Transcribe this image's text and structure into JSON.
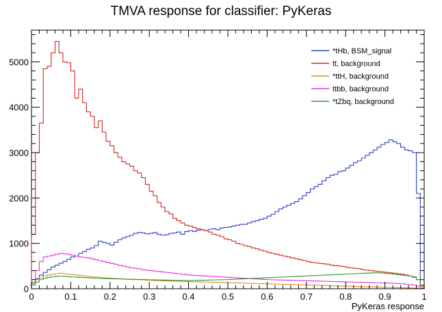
{
  "chart_data": {
    "type": "line",
    "title": "TMVA response for classifier: PyKeras",
    "xlabel": "PyKeras response",
    "ylabel": "",
    "xlim": [
      0,
      1
    ],
    "ylim": [
      0,
      5700
    ],
    "x_ticks": [
      0,
      0.1,
      0.2,
      0.3,
      0.4,
      0.5,
      0.6,
      0.7,
      0.8,
      0.9,
      1
    ],
    "x_tick_labels": [
      "0",
      "0.1",
      "0.2",
      "0.3",
      "0.4",
      "0.5",
      "0.6",
      "0.7",
      "0.8",
      "0.9",
      "1"
    ],
    "y_ticks": [
      0,
      1000,
      2000,
      3000,
      4000,
      5000
    ],
    "y_tick_labels": [
      "0",
      "1000",
      "2000",
      "3000",
      "4000",
      "5000"
    ],
    "legend_position": "top-right",
    "step": true,
    "bin_edges": [
      0,
      0.01,
      0.02,
      0.03,
      0.04,
      0.05,
      0.06,
      0.07,
      0.08,
      0.09,
      0.1,
      0.11,
      0.12,
      0.13,
      0.14,
      0.15,
      0.16,
      0.17,
      0.18,
      0.19,
      0.2,
      0.21,
      0.22,
      0.23,
      0.24,
      0.25,
      0.26,
      0.27,
      0.28,
      0.29,
      0.3,
      0.31,
      0.32,
      0.33,
      0.34,
      0.35,
      0.36,
      0.37,
      0.38,
      0.39,
      0.4,
      0.41,
      0.42,
      0.43,
      0.44,
      0.45,
      0.46,
      0.47,
      0.48,
      0.49,
      0.5,
      0.51,
      0.52,
      0.53,
      0.54,
      0.55,
      0.56,
      0.57,
      0.58,
      0.59,
      0.6,
      0.61,
      0.62,
      0.63,
      0.64,
      0.65,
      0.66,
      0.67,
      0.68,
      0.69,
      0.7,
      0.71,
      0.72,
      0.73,
      0.74,
      0.75,
      0.76,
      0.77,
      0.78,
      0.79,
      0.8,
      0.81,
      0.82,
      0.83,
      0.84,
      0.85,
      0.86,
      0.87,
      0.88,
      0.89,
      0.9,
      0.91,
      0.92,
      0.93,
      0.94,
      0.95,
      0.96,
      0.97,
      0.98,
      0.99,
      1.0
    ],
    "series": [
      {
        "name": "*tHb, BSM_signal",
        "color": "#2b3dc7",
        "values": [
          120,
          220,
          300,
          360,
          420,
          480,
          520,
          560,
          600,
          650,
          700,
          720,
          780,
          820,
          870,
          900,
          950,
          1050,
          1020,
          1000,
          960,
          1020,
          1080,
          1120,
          1150,
          1180,
          1220,
          1240,
          1230,
          1210,
          1220,
          1240,
          1200,
          1180,
          1190,
          1220,
          1230,
          1250,
          1200,
          1260,
          1280,
          1260,
          1290,
          1300,
          1280,
          1310,
          1320,
          1300,
          1340,
          1350,
          1360,
          1380,
          1400,
          1420,
          1420,
          1450,
          1480,
          1500,
          1530,
          1550,
          1600,
          1640,
          1700,
          1760,
          1800,
          1840,
          1880,
          1920,
          1980,
          2050,
          2120,
          2200,
          2250,
          2300,
          2380,
          2450,
          2500,
          2520,
          2580,
          2600,
          2660,
          2720,
          2780,
          2820,
          2880,
          2940,
          3000,
          3060,
          3120,
          3180,
          3220,
          3280,
          3240,
          3200,
          3120,
          3060,
          3040,
          3000,
          2100,
          80
        ]
      },
      {
        "name": "tt, background",
        "color": "#d3241c",
        "values": [
          1200,
          3000,
          3650,
          4850,
          4900,
          5200,
          5450,
          5200,
          5000,
          4980,
          4800,
          4200,
          4400,
          4100,
          3900,
          3800,
          3550,
          3700,
          3450,
          3250,
          3150,
          3000,
          2900,
          2800,
          2750,
          2700,
          2600,
          2550,
          2450,
          2300,
          2150,
          2050,
          1900,
          1800,
          1700,
          1650,
          1550,
          1500,
          1450,
          1400,
          1380,
          1350,
          1320,
          1300,
          1280,
          1250,
          1200,
          1180,
          1150,
          1100,
          1080,
          1050,
          1000,
          980,
          950,
          930,
          900,
          880,
          850,
          830,
          800,
          780,
          760,
          740,
          720,
          700,
          680,
          660,
          640,
          620,
          600,
          580,
          570,
          560,
          550,
          540,
          520,
          510,
          500,
          490,
          470,
          460,
          450,
          440,
          420,
          410,
          400,
          390,
          380,
          370,
          360,
          350,
          340,
          330,
          320,
          300,
          280,
          250,
          200,
          80
        ]
      },
      {
        "name": "*ttH, background",
        "color": "#d98a2b",
        "values": [
          150,
          200,
          240,
          280,
          300,
          320,
          330,
          340,
          330,
          320,
          310,
          300,
          290,
          280,
          270,
          260,
          255,
          250,
          240,
          235,
          230,
          225,
          220,
          215,
          210,
          205,
          200,
          200,
          195,
          190,
          185,
          180,
          178,
          175,
          172,
          170,
          168,
          165,
          162,
          160,
          158,
          155,
          152,
          150,
          148,
          145,
          142,
          140,
          138,
          135,
          132,
          130,
          128,
          125,
          122,
          120,
          118,
          115,
          112,
          110,
          108,
          105,
          102,
          100,
          98,
          95,
          92,
          90,
          88,
          85,
          82,
          80,
          78,
          75,
          72,
          70,
          68,
          65,
          62,
          60,
          58,
          55,
          52,
          50,
          48,
          45,
          42,
          40,
          38,
          35,
          32,
          30,
          28,
          25,
          22,
          20,
          18,
          15,
          12,
          8
        ]
      },
      {
        "name": "ttbb, background",
        "color": "#e030d8",
        "values": [
          200,
          400,
          600,
          700,
          720,
          740,
          760,
          780,
          770,
          760,
          740,
          720,
          700,
          690,
          680,
          660,
          640,
          620,
          600,
          580,
          560,
          540,
          520,
          500,
          480,
          460,
          450,
          440,
          420,
          410,
          400,
          390,
          380,
          370,
          360,
          350,
          340,
          330,
          320,
          310,
          300,
          295,
          290,
          285,
          280,
          275,
          270,
          265,
          260,
          255,
          250,
          245,
          240,
          235,
          230,
          225,
          220,
          215,
          210,
          205,
          200,
          198,
          195,
          192,
          190,
          188,
          185,
          182,
          180,
          178,
          175,
          172,
          170,
          168,
          165,
          162,
          160,
          158,
          155,
          152,
          150,
          148,
          145,
          142,
          140,
          138,
          135,
          132,
          130,
          128,
          125,
          122,
          120,
          115,
          110,
          100,
          90,
          80,
          60,
          20
        ]
      },
      {
        "name": "*tZbq, background",
        "color": "#2e9a32",
        "values": [
          80,
          150,
          200,
          230,
          250,
          260,
          270,
          275,
          270,
          265,
          260,
          255,
          250,
          245,
          240,
          235,
          230,
          228,
          225,
          222,
          220,
          218,
          215,
          212,
          210,
          208,
          206,
          204,
          202,
          200,
          198,
          196,
          194,
          192,
          190,
          188,
          186,
          184,
          182,
          180,
          182,
          184,
          186,
          188,
          190,
          192,
          194,
          196,
          198,
          200,
          204,
          208,
          212,
          216,
          220,
          224,
          228,
          232,
          236,
          240,
          244,
          248,
          252,
          256,
          260,
          264,
          268,
          272,
          276,
          280,
          284,
          288,
          292,
          296,
          300,
          304,
          308,
          312,
          316,
          320,
          324,
          328,
          332,
          336,
          340,
          344,
          348,
          352,
          350,
          345,
          340,
          330,
          320,
          310,
          300,
          290,
          280,
          260,
          200,
          60
        ]
      }
    ]
  }
}
